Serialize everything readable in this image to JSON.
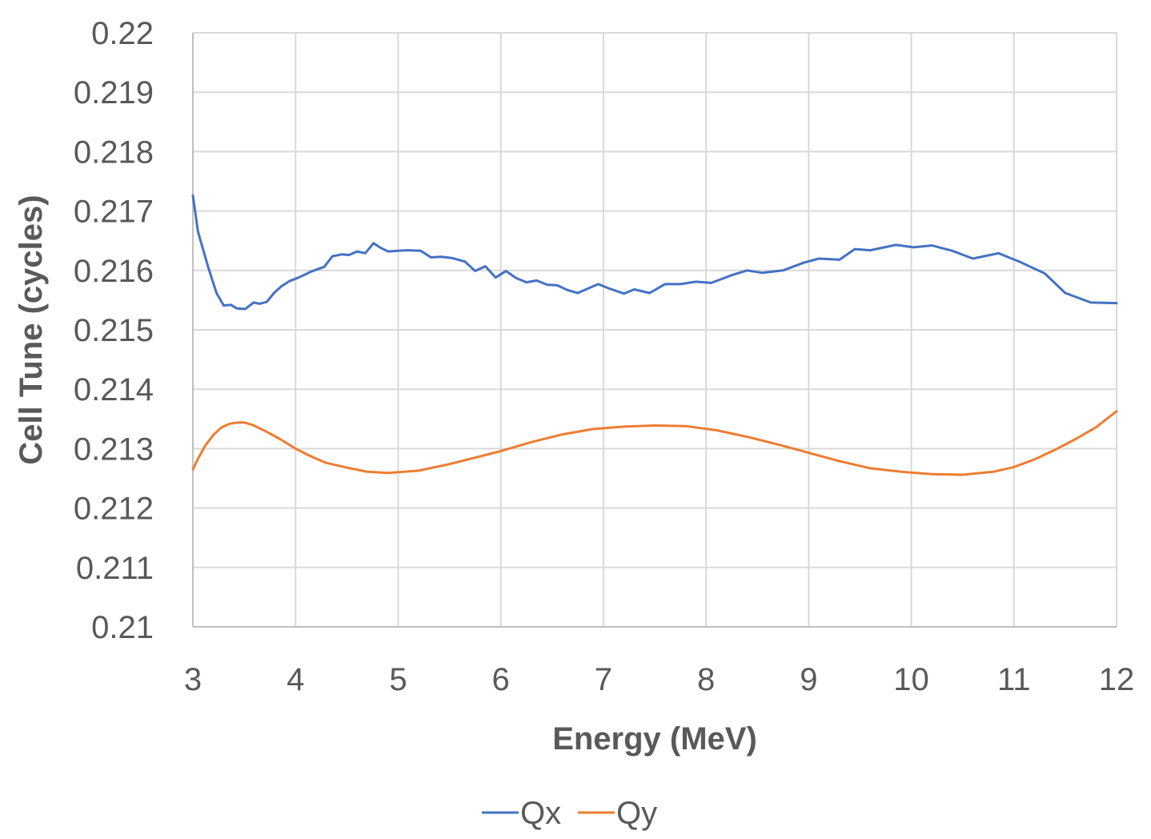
{
  "chart_data": {
    "type": "line",
    "title": "",
    "xlabel": "Energy (MeV)",
    "ylabel": "Cell Tune (cycles)",
    "xlim": [
      3,
      12
    ],
    "ylim": [
      0.21,
      0.22
    ],
    "xticks": [
      3,
      4,
      5,
      6,
      7,
      8,
      9,
      10,
      11,
      12
    ],
    "yticks": [
      0.21,
      0.211,
      0.212,
      0.213,
      0.214,
      0.215,
      0.216,
      0.217,
      0.218,
      0.219,
      0.22
    ],
    "xtick_labels": [
      "3",
      "4",
      "5",
      "6",
      "7",
      "8",
      "9",
      "10",
      "11",
      "12"
    ],
    "ytick_labels": [
      "0.21",
      "0.211",
      "0.212",
      "0.213",
      "0.214",
      "0.215",
      "0.216",
      "0.217",
      "0.218",
      "0.219",
      "0.22"
    ],
    "grid": true,
    "legend_position": "bottom-center",
    "series": [
      {
        "name": "Qx",
        "color": "#4472c4",
        "x": [
          3.0,
          3.05,
          3.15,
          3.23,
          3.3,
          3.37,
          3.43,
          3.51,
          3.59,
          3.65,
          3.72,
          3.79,
          3.86,
          3.94,
          4.03,
          4.15,
          4.28,
          4.36,
          4.45,
          4.52,
          4.6,
          4.68,
          4.76,
          4.82,
          4.9,
          5.0,
          5.1,
          5.22,
          5.32,
          5.42,
          5.52,
          5.65,
          5.75,
          5.85,
          5.95,
          6.05,
          6.15,
          6.25,
          6.35,
          6.45,
          6.55,
          6.65,
          6.75,
          6.87,
          6.95,
          7.05,
          7.2,
          7.3,
          7.45,
          7.6,
          7.75,
          7.9,
          8.05,
          8.25,
          8.4,
          8.55,
          8.75,
          8.95,
          9.1,
          9.3,
          9.45,
          9.6,
          9.85,
          10.02,
          10.2,
          10.4,
          10.6,
          10.85,
          11.05,
          11.3,
          11.5,
          11.75,
          12.0
        ],
        "y": [
          0.21726,
          0.21665,
          0.21605,
          0.21562,
          0.21541,
          0.21542,
          0.21536,
          0.21535,
          0.21546,
          0.21544,
          0.21547,
          0.21562,
          0.21573,
          0.21582,
          0.21588,
          0.21598,
          0.21606,
          0.21624,
          0.21627,
          0.21626,
          0.21632,
          0.21629,
          0.21646,
          0.21639,
          0.21632,
          0.21633,
          0.21634,
          0.21633,
          0.21622,
          0.21623,
          0.21621,
          0.21615,
          0.21599,
          0.21607,
          0.21588,
          0.21599,
          0.21587,
          0.2158,
          0.21583,
          0.21576,
          0.21575,
          0.21567,
          0.21562,
          0.21571,
          0.21577,
          0.2157,
          0.21561,
          0.21568,
          0.21562,
          0.21577,
          0.21577,
          0.21581,
          0.21579,
          0.21592,
          0.216,
          0.21596,
          0.216,
          0.21613,
          0.2162,
          0.21618,
          0.21636,
          0.21634,
          0.21643,
          0.21639,
          0.21642,
          0.21633,
          0.2162,
          0.21629,
          0.21615,
          0.21595,
          0.21562,
          0.21546,
          0.21545
        ]
      },
      {
        "name": "Qy",
        "color": "#ed7d31",
        "x": [
          3.0,
          3.05,
          3.12,
          3.2,
          3.28,
          3.36,
          3.44,
          3.5,
          3.58,
          3.7,
          3.85,
          4.0,
          4.15,
          4.3,
          4.5,
          4.7,
          4.9,
          5.2,
          5.5,
          5.8,
          6.0,
          6.3,
          6.6,
          6.9,
          7.2,
          7.5,
          7.8,
          8.1,
          8.4,
          8.7,
          9.0,
          9.3,
          9.6,
          9.9,
          10.2,
          10.5,
          10.8,
          11.0,
          11.2,
          11.4,
          11.6,
          11.8,
          12.0
        ],
        "y": [
          0.21265,
          0.21283,
          0.21305,
          0.21323,
          0.21336,
          0.21342,
          0.21344,
          0.21344,
          0.2134,
          0.2133,
          0.21316,
          0.213,
          0.21287,
          0.21276,
          0.21268,
          0.21261,
          0.21259,
          0.21263,
          0.21274,
          0.21287,
          0.21296,
          0.21311,
          0.21324,
          0.21333,
          0.21337,
          0.21339,
          0.21338,
          0.21331,
          0.2132,
          0.21307,
          0.21293,
          0.21279,
          0.21267,
          0.21261,
          0.21257,
          0.21256,
          0.21261,
          0.21269,
          0.21282,
          0.21298,
          0.21316,
          0.21336,
          0.21363
        ]
      }
    ]
  }
}
